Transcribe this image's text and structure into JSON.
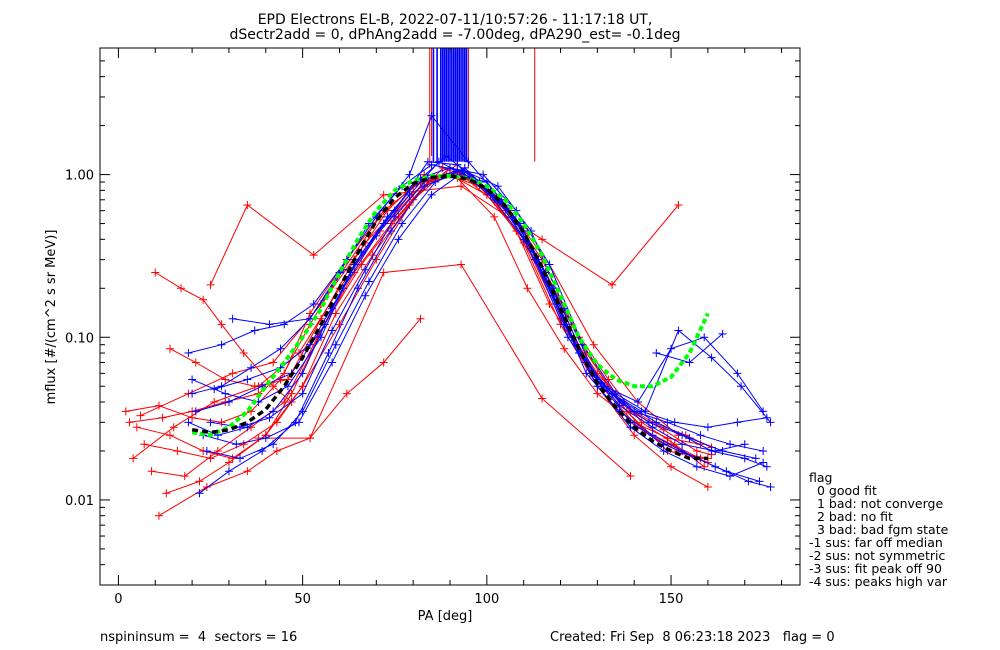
{
  "chart_data": {
    "type": "line",
    "title_line1": "EPD Electrons EL-B, 2022-07-11/10:57:26 - 11:17:18 UT,",
    "title_line2": "dSectr2add = 0, dPhAng2add = -7.00deg, dPA290_est=  -0.1deg",
    "xlabel": "PA [deg]",
    "ylabel": "mflux [#/(cm^2 s sr MeV)]",
    "xlim": [
      -5,
      185
    ],
    "ylim": [
      0.003,
      6
    ],
    "yscale": "log",
    "xticks": [
      0,
      50,
      100,
      150
    ],
    "yticks": [
      {
        "value": 0.01,
        "label": "0.01"
      },
      {
        "value": 0.1,
        "label": "0.10"
      },
      {
        "value": 1,
        "label": "1.00"
      }
    ],
    "colors": {
      "red": "#ff0000",
      "blue": "#0000ff",
      "green": "#00ff00",
      "black": "#000000"
    },
    "red_series": [
      {
        "x": [
          3,
          12,
          20,
          29,
          38,
          45,
          52,
          62,
          72,
          82,
          90,
          100,
          110,
          120,
          130,
          139,
          148,
          157,
          161
        ],
        "y": [
          0.03,
          0.032,
          0.035,
          0.04,
          0.045,
          0.06,
          0.14,
          0.3,
          0.6,
          0.9,
          1.0,
          0.75,
          0.4,
          0.13,
          0.06,
          0.035,
          0.027,
          0.02,
          0.019
        ]
      },
      {
        "x": [
          5,
          14,
          23,
          31,
          40,
          47,
          56,
          66,
          76,
          85,
          93,
          103,
          112,
          122,
          131,
          141,
          150,
          158
        ],
        "y": [
          0.028,
          0.025,
          0.02,
          0.018,
          0.025,
          0.045,
          0.12,
          0.28,
          0.55,
          0.95,
          1.05,
          0.7,
          0.35,
          0.11,
          0.05,
          0.028,
          0.022,
          0.018
        ]
      },
      {
        "x": [
          7,
          16,
          25,
          34,
          43,
          50,
          59,
          69,
          79,
          88,
          96,
          106,
          115,
          125,
          134,
          143,
          152,
          160
        ],
        "y": [
          0.022,
          0.02,
          0.018,
          0.022,
          0.03,
          0.05,
          0.14,
          0.32,
          0.65,
          1.1,
          0.95,
          0.6,
          0.3,
          0.1,
          0.045,
          0.026,
          0.02,
          0.017
        ]
      },
      {
        "x": [
          2,
          11,
          20,
          28,
          36,
          44,
          52,
          61,
          71,
          80,
          89,
          98,
          108,
          117,
          127,
          136,
          145,
          154,
          161
        ],
        "y": [
          0.035,
          0.038,
          0.032,
          0.03,
          0.035,
          0.055,
          0.12,
          0.26,
          0.55,
          0.85,
          1.0,
          0.85,
          0.45,
          0.16,
          0.07,
          0.04,
          0.03,
          0.025,
          0.021
        ]
      },
      {
        "x": [
          9,
          18,
          27,
          36,
          45,
          54,
          64,
          74,
          84,
          93,
          103,
          113,
          123,
          133,
          142,
          151,
          159
        ],
        "y": [
          0.015,
          0.014,
          0.02,
          0.028,
          0.04,
          0.1,
          0.25,
          0.5,
          0.9,
          1.0,
          0.65,
          0.3,
          0.12,
          0.055,
          0.03,
          0.022,
          0.016
        ]
      },
      {
        "x": [
          10,
          17,
          23,
          28,
          34,
          42,
          47
        ],
        "y": [
          0.25,
          0.2,
          0.17,
          0.12,
          0.08,
          0.05,
          0.04
        ]
      },
      {
        "x": [
          11,
          24,
          35,
          43,
          52,
          62,
          72,
          82
        ],
        "y": [
          0.008,
          0.012,
          0.015,
          0.02,
          0.024,
          0.045,
          0.07,
          0.13
        ]
      },
      {
        "x": [
          25,
          35,
          53,
          72,
          93,
          115,
          134,
          152
        ],
        "y": [
          0.21,
          0.65,
          0.32,
          0.75,
          0.85,
          0.4,
          0.21,
          0.65
        ]
      },
      {
        "x": [
          38,
          52,
          72,
          93,
          115,
          139
        ],
        "y": [
          0.024,
          0.024,
          0.25,
          0.28,
          0.042,
          0.014
        ]
      },
      {
        "x": [
          13,
          22,
          30,
          40,
          50,
          60,
          70,
          80,
          90,
          100,
          110,
          120,
          130,
          140,
          150,
          160
        ],
        "y": [
          0.011,
          0.013,
          0.017,
          0.025,
          0.05,
          0.12,
          0.3,
          0.7,
          1.1,
          0.8,
          0.38,
          0.12,
          0.05,
          0.025,
          0.016,
          0.012
        ]
      },
      {
        "x": [
          4,
          15,
          26,
          38,
          49,
          60,
          71,
          83,
          94,
          105,
          116,
          127,
          138,
          149,
          160
        ],
        "y": [
          0.018,
          0.028,
          0.04,
          0.05,
          0.08,
          0.2,
          0.45,
          0.9,
          1.05,
          0.6,
          0.25,
          0.08,
          0.035,
          0.02,
          0.018
        ]
      },
      {
        "x": [
          6,
          19,
          31,
          42,
          55,
          67,
          79,
          92,
          104,
          117,
          129,
          141,
          152
        ],
        "y": [
          0.033,
          0.045,
          0.06,
          0.07,
          0.16,
          0.38,
          0.75,
          1.15,
          0.7,
          0.28,
          0.09,
          0.04,
          0.025
        ]
      },
      {
        "x": [
          14,
          21,
          29,
          37,
          46,
          55,
          64,
          73,
          83,
          92,
          102,
          111,
          121,
          130,
          140,
          149,
          158
        ],
        "y": [
          0.085,
          0.07,
          0.055,
          0.05,
          0.055,
          0.13,
          0.3,
          0.6,
          1.0,
          0.95,
          0.55,
          0.2,
          0.085,
          0.045,
          0.03,
          0.024,
          0.022
        ]
      }
    ],
    "blue_series": [
      {
        "x": [
          19,
          27,
          35,
          42,
          50,
          58,
          66,
          75,
          84,
          92,
          101,
          109,
          118,
          127,
          136,
          144,
          153,
          161,
          170,
          176
        ],
        "y": [
          0.03,
          0.025,
          0.028,
          0.035,
          0.06,
          0.15,
          0.33,
          0.6,
          1.2,
          1.15,
          0.75,
          0.5,
          0.2,
          0.07,
          0.04,
          0.03,
          0.025,
          0.02,
          0.018,
          0.016
        ]
      },
      {
        "x": [
          20,
          29,
          38,
          46,
          55,
          63,
          72,
          81,
          89,
          98,
          107,
          116,
          125,
          134,
          142,
          151,
          160,
          168,
          176
        ],
        "y": [
          0.055,
          0.045,
          0.04,
          0.05,
          0.1,
          0.25,
          0.5,
          0.9,
          1.3,
          0.9,
          0.55,
          0.25,
          0.08,
          0.045,
          0.035,
          0.03,
          0.028,
          0.03,
          0.032
        ]
      },
      {
        "x": [
          22,
          30,
          39,
          48,
          57,
          65,
          74,
          83,
          91,
          100,
          109,
          118,
          127,
          136,
          145,
          153,
          162,
          171,
          177
        ],
        "y": [
          0.011,
          0.015,
          0.02,
          0.03,
          0.08,
          0.2,
          0.45,
          0.85,
          1.0,
          0.9,
          0.5,
          0.18,
          0.06,
          0.035,
          0.025,
          0.02,
          0.016,
          0.013,
          0.012
        ]
      },
      {
        "x": [
          19,
          28,
          37,
          45,
          53,
          62,
          70,
          79,
          85,
          95,
          104,
          113,
          122,
          131,
          140,
          149,
          158,
          166,
          175
        ],
        "y": [
          0.08,
          0.09,
          0.11,
          0.12,
          0.16,
          0.3,
          0.55,
          1.0,
          2.3,
          1.2,
          0.7,
          0.3,
          0.1,
          0.05,
          0.035,
          0.03,
          0.025,
          0.022,
          0.02
        ]
      },
      {
        "x": [
          23,
          32,
          40,
          49,
          58,
          67,
          76,
          85,
          94,
          103,
          112,
          121,
          130,
          139,
          148,
          157,
          165,
          174
        ],
        "y": [
          0.025,
          0.022,
          0.024,
          0.03,
          0.07,
          0.18,
          0.4,
          0.75,
          1.05,
          0.85,
          0.45,
          0.15,
          0.055,
          0.03,
          0.022,
          0.018,
          0.015,
          0.013
        ]
      },
      {
        "x": [
          21,
          30,
          39,
          47,
          56,
          64,
          73,
          82,
          90,
          99,
          108,
          117,
          126,
          135,
          143,
          152,
          161,
          169,
          177
        ],
        "y": [
          0.035,
          0.04,
          0.05,
          0.06,
          0.12,
          0.28,
          0.55,
          0.95,
          1.1,
          1.0,
          0.6,
          0.28,
          0.09,
          0.045,
          0.035,
          0.11,
          0.075,
          0.05,
          0.03
        ]
      },
      {
        "x": [
          24,
          33,
          42,
          50,
          59,
          68,
          77,
          86,
          94,
          103,
          112,
          121,
          130,
          139,
          148,
          157,
          166,
          175
        ],
        "y": [
          0.02,
          0.018,
          0.022,
          0.035,
          0.09,
          0.22,
          0.5,
          0.9,
          1.1,
          0.7,
          0.35,
          0.12,
          0.05,
          0.028,
          0.02,
          0.016,
          0.014,
          0.017
        ]
      },
      {
        "x": [
          26,
          35,
          44,
          52,
          61,
          70,
          79,
          87,
          96,
          105,
          114,
          123,
          132,
          141,
          150,
          159,
          168,
          175
        ],
        "y": [
          0.048,
          0.055,
          0.065,
          0.09,
          0.2,
          0.42,
          0.75,
          1.2,
          0.95,
          0.65,
          0.3,
          0.1,
          0.05,
          0.04,
          0.085,
          0.1,
          0.06,
          0.035
        ]
      },
      {
        "x": [
          20,
          28,
          36,
          44,
          52,
          60,
          68,
          77,
          85,
          93,
          102,
          110,
          119,
          128,
          137,
          146,
          155,
          164,
          173
        ],
        "y": [
          0.045,
          0.05,
          0.065,
          0.085,
          0.13,
          0.25,
          0.5,
          0.85,
          1.15,
          1.05,
          0.7,
          0.4,
          0.16,
          0.06,
          0.04,
          0.03,
          0.024,
          0.02,
          0.018
        ]
      },
      {
        "x": [
          25,
          33,
          41,
          50,
          58,
          67,
          75,
          84,
          92,
          101,
          110,
          118,
          127,
          136,
          145,
          153,
          162,
          170
        ],
        "y": [
          0.03,
          0.028,
          0.032,
          0.045,
          0.11,
          0.26,
          0.55,
          0.95,
          1.05,
          0.8,
          0.45,
          0.2,
          0.07,
          0.038,
          0.028,
          0.022,
          0.02,
          0.022
        ]
      },
      {
        "x": [
          31,
          41,
          52,
          61
        ],
        "y": [
          0.13,
          0.12,
          0.13,
          0.26
        ]
      },
      {
        "x": [
          146,
          155,
          164
        ],
        "y": [
          0.08,
          0.07,
          0.105
        ]
      }
    ],
    "blue_vertical_lines": {
      "x": [
        85.5,
        86.5,
        87.5,
        88,
        88.5,
        89,
        89.5,
        90,
        90.5,
        91,
        91.5,
        92,
        92.5,
        93,
        93.5,
        94,
        94.5
      ],
      "y_bottom": 1.2
    },
    "red_vertical_lines": [
      {
        "x": 84.5,
        "y_bottom": 1.1
      },
      {
        "x": 85,
        "y_bottom": 1.3
      },
      {
        "x": 95,
        "y_bottom": 1.1
      },
      {
        "x": 113,
        "y_bottom": 1.2
      }
    ],
    "green_fit": {
      "x": [
        20,
        25,
        30,
        35,
        40,
        45,
        50,
        55,
        60,
        65,
        70,
        75,
        80,
        85,
        90,
        95,
        100,
        105,
        110,
        115,
        120,
        125,
        130,
        135,
        140,
        145,
        150,
        155,
        160
      ],
      "y": [
        0.026,
        0.025,
        0.028,
        0.035,
        0.05,
        0.07,
        0.1,
        0.15,
        0.25,
        0.4,
        0.6,
        0.8,
        0.92,
        0.98,
        0.98,
        0.95,
        0.85,
        0.7,
        0.5,
        0.32,
        0.18,
        0.1,
        0.068,
        0.055,
        0.05,
        0.05,
        0.057,
        0.08,
        0.14
      ]
    },
    "black_fit": {
      "x": [
        20,
        25,
        30,
        35,
        40,
        45,
        50,
        55,
        60,
        65,
        70,
        75,
        80,
        85,
        90,
        95,
        100,
        105,
        110,
        115,
        120,
        125,
        130,
        135,
        140,
        145,
        150,
        155,
        160
      ],
      "y": [
        0.027,
        0.026,
        0.027,
        0.03,
        0.036,
        0.05,
        0.075,
        0.12,
        0.2,
        0.33,
        0.52,
        0.72,
        0.88,
        0.96,
        0.98,
        0.94,
        0.82,
        0.64,
        0.44,
        0.27,
        0.15,
        0.085,
        0.052,
        0.037,
        0.028,
        0.023,
        0.02,
        0.018,
        0.018
      ]
    },
    "flag_legend": {
      "title": "flag",
      "items": [
        "0 good fit",
        "1 bad: not converge",
        "2 bad: no fit",
        "3 bad: bad fgm state",
        "-1 sus: far off median",
        "-2 sus: not symmetric",
        "-3 sus: fit peak off 90",
        "-4 sus: peaks high var"
      ]
    },
    "footer_left": "nspininsum =  4  sectors = 16",
    "footer_right": "Created: Fri Sep  8 06:23:18 2023   flag = 0"
  }
}
